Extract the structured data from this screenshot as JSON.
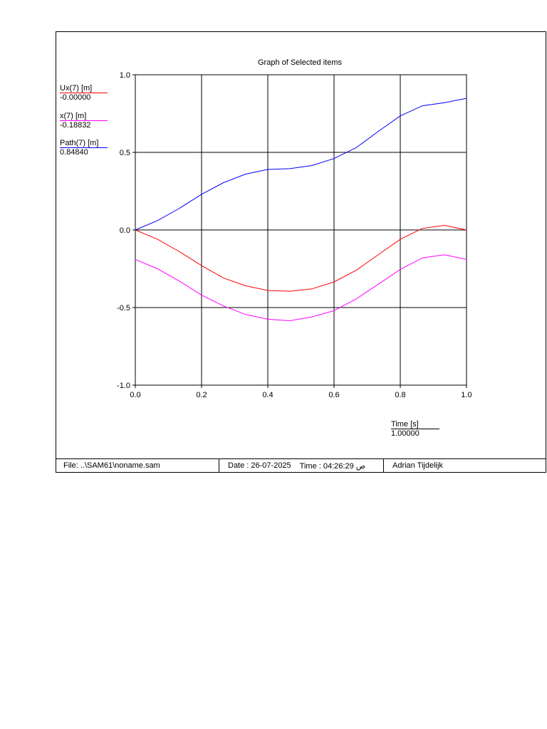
{
  "chart_data": {
    "type": "line",
    "title": "Graph of Selected items",
    "xlim": [
      0,
      1
    ],
    "ylim": [
      -1,
      1
    ],
    "xticks": [
      "0.0",
      "0.2",
      "0.4",
      "0.6",
      "0.8",
      "1.0"
    ],
    "yticks": [
      "-1.0",
      "-0.5",
      "0.0",
      "0.5",
      "1.0"
    ],
    "grid": true,
    "x": [
      0.0,
      0.0667,
      0.1333,
      0.2,
      0.2667,
      0.3333,
      0.4,
      0.4667,
      0.5333,
      0.6,
      0.6667,
      0.7333,
      0.8,
      0.8667,
      0.9333,
      1.0
    ],
    "series": [
      {
        "name": "Ux(7) [m]",
        "readout": "-0.00000",
        "color": "#ff0000",
        "values": [
          0.0,
          -0.06,
          -0.14,
          -0.23,
          -0.31,
          -0.36,
          -0.39,
          -0.395,
          -0.38,
          -0.335,
          -0.26,
          -0.16,
          -0.06,
          0.01,
          0.03,
          0.0
        ]
      },
      {
        "name": "x(7) [m]",
        "readout": "-0.18832",
        "color": "#ff00ff",
        "values": [
          -0.19,
          -0.25,
          -0.33,
          -0.42,
          -0.49,
          -0.545,
          -0.575,
          -0.585,
          -0.56,
          -0.52,
          -0.445,
          -0.35,
          -0.255,
          -0.18,
          -0.16,
          -0.19
        ]
      },
      {
        "name": "Path(7) [m]",
        "readout": "0.84840",
        "color": "#0000ff",
        "values": [
          0.0,
          0.06,
          0.14,
          0.23,
          0.305,
          0.36,
          0.39,
          0.395,
          0.415,
          0.46,
          0.53,
          0.635,
          0.735,
          0.8,
          0.82,
          0.848
        ]
      }
    ],
    "xlabel": "Time [s]",
    "xreadout": "1.00000"
  },
  "footer": {
    "file": "File: ..\\SAM61\\noname.sam",
    "date": "Date : 26-07-2025",
    "time": "Time : 04:26:29 ص",
    "author": "Adrian Tijdelijk"
  }
}
